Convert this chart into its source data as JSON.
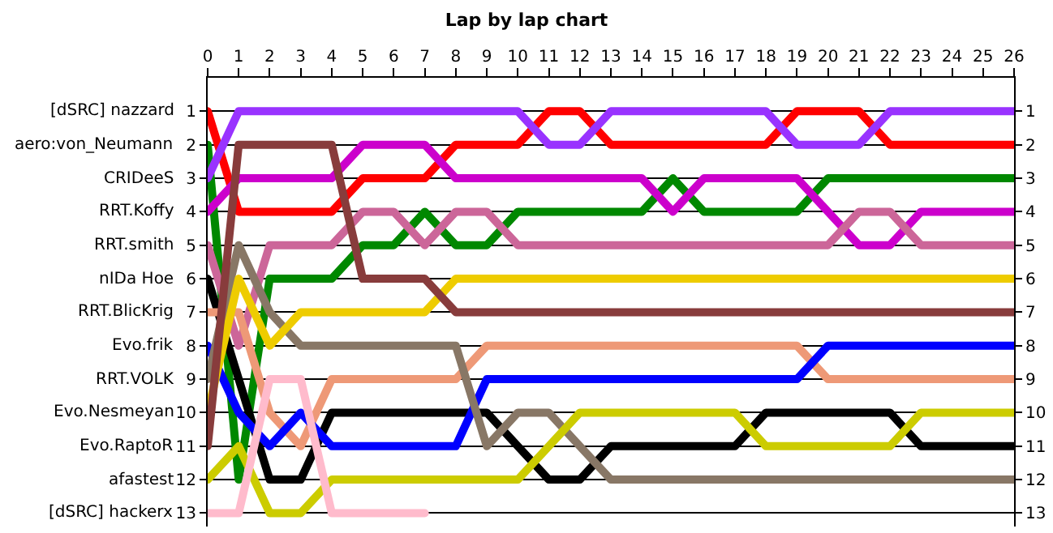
{
  "chart_data": {
    "type": "line",
    "title": "Lap by lap chart",
    "x": [
      0,
      1,
      2,
      3,
      4,
      5,
      6,
      7,
      8,
      9,
      10,
      11,
      12,
      13,
      14,
      15,
      16,
      17,
      18,
      19,
      20,
      21,
      22,
      23,
      24,
      25,
      26
    ],
    "xlim": [
      0,
      26
    ],
    "xticks": [
      0,
      1,
      2,
      3,
      4,
      5,
      6,
      7,
      8,
      9,
      10,
      11,
      12,
      13,
      14,
      15,
      16,
      17,
      18,
      19,
      20,
      21,
      22,
      23,
      24,
      25,
      26
    ],
    "ylim": [
      13.4,
      0
    ],
    "yticks": [
      1,
      2,
      3,
      4,
      5,
      6,
      7,
      8,
      9,
      10,
      11,
      12,
      13
    ],
    "annotations": [
      "[dSRC] nazzard",
      "aero:von_Neumann",
      "CRIDeeS",
      "RRT.Koffy",
      "RRT.smith",
      "nIDa Hoe",
      "RRT.BlicKrig",
      "Evo.frik",
      "RRT.VOLK",
      "Evo.Nesmeyan",
      "Evo.RaptoR",
      "afastest",
      "[dSRC] hackerx"
    ],
    "y2lim": [
      13.4,
      0
    ],
    "y2ticks": [
      1,
      2,
      3,
      4,
      5,
      6,
      7,
      8,
      9,
      10,
      11,
      12,
      13
    ],
    "grid": "y",
    "marker": "none",
    "line_style": "solid",
    "series": [
      {
        "color": "#ff0000",
        "values": [
          1,
          4,
          4,
          4,
          4,
          3,
          3,
          3,
          2,
          2,
          2,
          1,
          1,
          2,
          2,
          2,
          2,
          2,
          2,
          1,
          1,
          1,
          2,
          2,
          2,
          2,
          2
        ]
      },
      {
        "color": "#008800",
        "values": [
          2,
          12,
          6,
          6,
          6,
          5,
          5,
          4,
          5,
          5,
          4,
          4,
          4,
          4,
          4,
          3,
          4,
          4,
          4,
          4,
          3,
          3,
          3,
          3,
          3,
          3,
          3
        ]
      },
      {
        "color": "#9933ff",
        "values": [
          3,
          1,
          1,
          1,
          1,
          1,
          1,
          1,
          1,
          1,
          1,
          2,
          2,
          1,
          1,
          1,
          1,
          1,
          1,
          2,
          2,
          2,
          1,
          1,
          1,
          1,
          1
        ]
      },
      {
        "color": "#cc00cc",
        "values": [
          4,
          3,
          3,
          3,
          3,
          2,
          2,
          2,
          3,
          3,
          3,
          3,
          3,
          3,
          3,
          4,
          3,
          3,
          3,
          3,
          4,
          5,
          5,
          4,
          4,
          4,
          4
        ]
      },
      {
        "color": "#cc6699",
        "values": [
          5,
          8,
          5,
          5,
          5,
          4,
          4,
          5,
          4,
          4,
          5,
          5,
          5,
          5,
          5,
          5,
          5,
          5,
          5,
          5,
          5,
          4,
          4,
          5,
          5,
          5,
          5
        ]
      },
      {
        "color": "#000000",
        "values": [
          6,
          9,
          12,
          12,
          10,
          10,
          10,
          10,
          10,
          10,
          11,
          12,
          12,
          11,
          11,
          11,
          11,
          11,
          10,
          10,
          10,
          10,
          10,
          11,
          11,
          11,
          11
        ]
      },
      {
        "color": "#ee9977",
        "values": [
          7,
          7,
          10,
          11,
          9,
          9,
          9,
          9,
          9,
          8,
          8,
          8,
          8,
          8,
          8,
          8,
          8,
          8,
          8,
          8,
          9,
          9,
          9,
          9,
          9,
          9,
          9
        ]
      },
      {
        "color": "#0000ff",
        "values": [
          8,
          10,
          11,
          10,
          11,
          11,
          11,
          11,
          11,
          9,
          9,
          9,
          9,
          9,
          9,
          9,
          9,
          9,
          9,
          9,
          8,
          8,
          8,
          8,
          8,
          8,
          8
        ]
      },
      {
        "color": "#887766",
        "values": [
          9,
          5,
          7,
          8,
          8,
          8,
          8,
          8,
          8,
          11,
          10,
          10,
          11,
          12,
          12,
          12,
          12,
          12,
          12,
          12,
          12,
          12,
          12,
          12,
          12,
          12,
          12
        ]
      },
      {
        "color": "#eecc00",
        "values": [
          10,
          6,
          8,
          7,
          7,
          7,
          7,
          7,
          6,
          6,
          6,
          6,
          6,
          6,
          6,
          6,
          6,
          6,
          6,
          6,
          6,
          6,
          6,
          6,
          6,
          6,
          6
        ]
      },
      {
        "color": "#883c3c",
        "values": [
          11,
          2,
          2,
          2,
          2,
          6,
          6,
          6,
          7,
          7,
          7,
          7,
          7,
          7,
          7,
          7,
          7,
          7,
          7,
          7,
          7,
          7,
          7,
          7,
          7,
          7,
          7
        ]
      },
      {
        "color": "#cccc00",
        "values": [
          12,
          11,
          13,
          13,
          12,
          12,
          12,
          12,
          12,
          12,
          12,
          11,
          10,
          10,
          10,
          10,
          10,
          10,
          11,
          11,
          11,
          11,
          11,
          10,
          10,
          10,
          10
        ]
      },
      {
        "color": "#ffbbcc",
        "values": [
          13,
          13,
          9,
          9,
          13,
          13,
          13,
          13,
          null,
          null,
          null,
          null,
          null,
          null,
          null,
          null,
          null,
          null,
          null,
          null,
          null,
          null,
          null,
          null,
          null,
          null,
          null
        ]
      }
    ]
  }
}
